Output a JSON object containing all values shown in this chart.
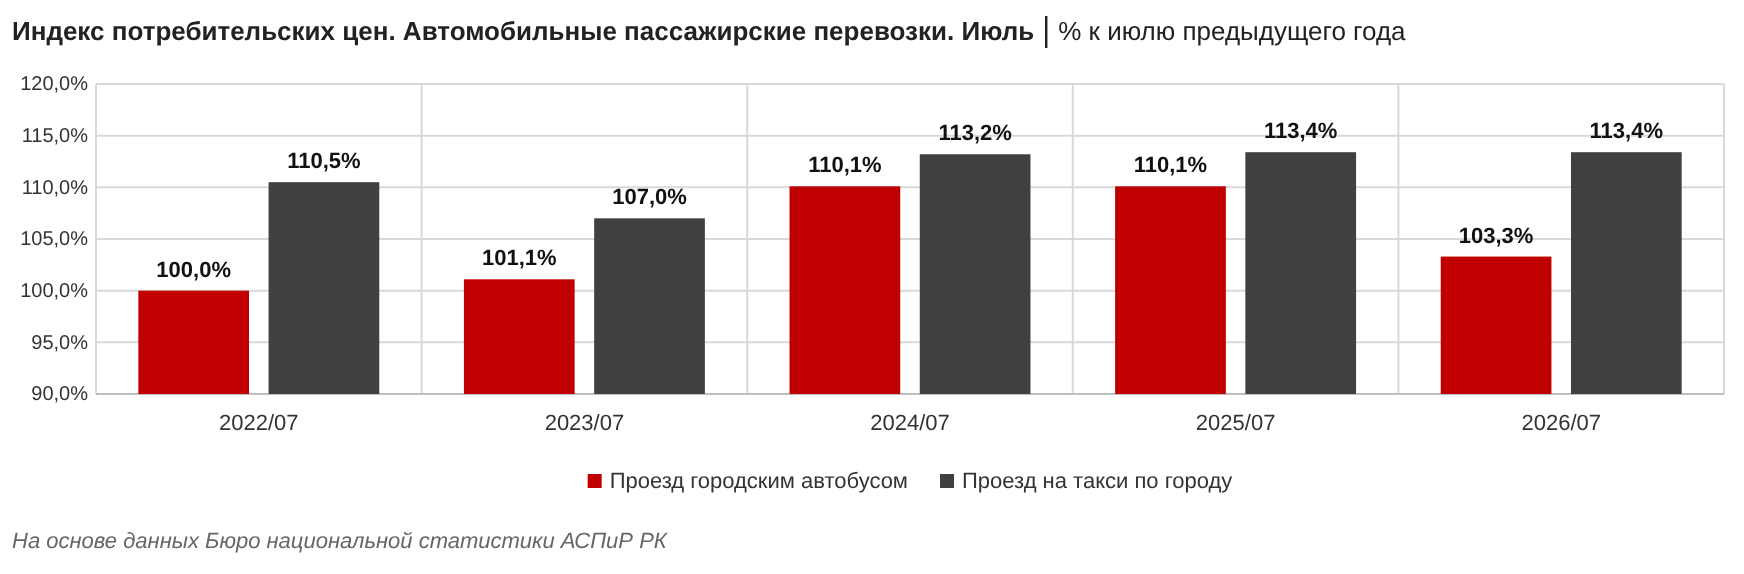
{
  "chart_data": {
    "type": "bar",
    "title": "Индекс потребительских цен. Автомобильные пассажирские перевозки. Июль",
    "subtitle": "% к июлю предыдущего года",
    "categories": [
      "2022/07",
      "2023/07",
      "2024/07",
      "2025/07",
      "2026/07"
    ],
    "series": [
      {
        "name": "Проезд городским автобусом",
        "color": "#c00000",
        "values": [
          100.0,
          101.1,
          110.1,
          110.1,
          103.3
        ],
        "value_labels": [
          "100,0%",
          "101,1%",
          "110,1%",
          "110,1%",
          "103,3%"
        ]
      },
      {
        "name": "Проезд на такси по городу",
        "color": "#404040",
        "values": [
          110.5,
          107.0,
          113.2,
          113.4,
          113.4
        ],
        "value_labels": [
          "110,5%",
          "107,0%",
          "113,2%",
          "113,4%",
          "113,4%"
        ]
      }
    ],
    "ylim": [
      90,
      120
    ],
    "yticks": [
      {
        "value": 90,
        "label": "90,0%"
      },
      {
        "value": 95,
        "label": "95,0%"
      },
      {
        "value": 100,
        "label": "100,0%"
      },
      {
        "value": 105,
        "label": "105,0%"
      },
      {
        "value": 110,
        "label": "110,0%"
      },
      {
        "value": 115,
        "label": "115,0%"
      },
      {
        "value": 120,
        "label": "120,0%"
      }
    ],
    "grid": true,
    "legend": "bottom",
    "annotations": [
      "На основе данных Бюро национальной статистики АСПиР РК"
    ]
  }
}
